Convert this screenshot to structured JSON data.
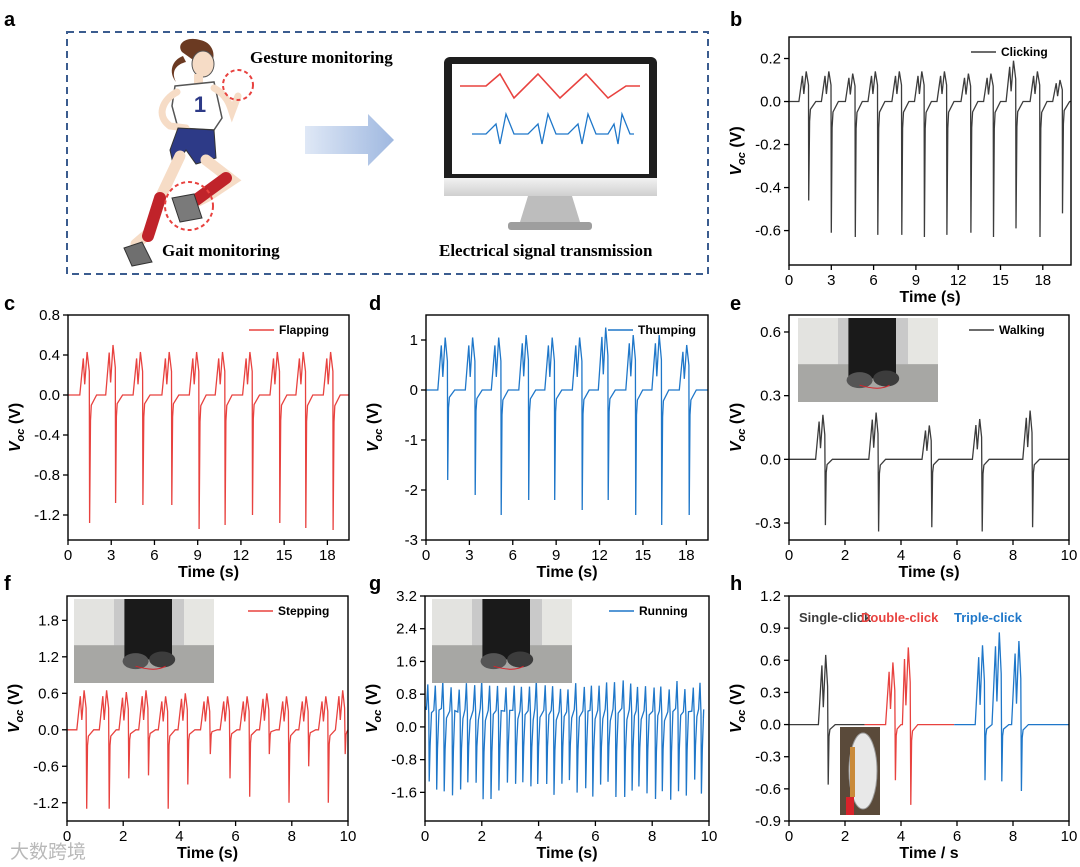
{
  "panel_a": {
    "letter": "a",
    "gesture_label": "Gesture monitoring",
    "gait_label": "Gait monitoring",
    "transmission_label": "Electrical signal transmission",
    "bib_number": "1"
  },
  "watermark": "大数跨境",
  "colors": {
    "black": "#3c3c3c",
    "red": "#e8423f",
    "blue": "#1f77c9",
    "frame": "#3b5c8f"
  },
  "chart_data": [
    {
      "id": "b",
      "type": "line",
      "letter": "b",
      "series_name": "Clicking",
      "color": "#3c3c3c",
      "xlabel": "Time (s)",
      "ylabel": "V_oc (V)",
      "xlim": [
        0,
        20
      ],
      "ylim": [
        -0.76,
        0.3
      ],
      "xticks": [
        0,
        3,
        6,
        9,
        12,
        15,
        18
      ],
      "yticks": [
        0.2,
        0.0,
        -0.2,
        -0.4,
        -0.6
      ],
      "xtick_labels": [
        "0",
        "3",
        "6",
        "9",
        "12",
        "15",
        "18"
      ],
      "ytick_labels": [
        "0.2",
        "0.0",
        "-0.2",
        "-0.4",
        "-0.6"
      ],
      "baseline": 0.0,
      "pulse_times": [
        1.4,
        3.0,
        4.7,
        6.3,
        8.0,
        9.6,
        11.2,
        12.9,
        14.5,
        16.1,
        17.8,
        19.4
      ],
      "peaks": [
        0.14,
        0.14,
        0.13,
        0.14,
        0.14,
        0.14,
        0.14,
        0.13,
        0.13,
        0.19,
        0.14,
        0.1
      ],
      "troughs": [
        -0.46,
        -0.61,
        -0.63,
        -0.62,
        -0.62,
        -0.63,
        -0.62,
        -0.61,
        -0.63,
        -0.59,
        -0.63,
        -0.52
      ]
    },
    {
      "id": "c",
      "type": "line",
      "letter": "c",
      "series_name": "Flapping",
      "color": "#e8423f",
      "xlabel": "Time (s)",
      "ylabel": "V_oc (V)",
      "xlim": [
        0,
        19.5
      ],
      "ylim": [
        -1.45,
        0.8
      ],
      "xticks": [
        0,
        3,
        6,
        9,
        12,
        15,
        18
      ],
      "yticks": [
        0.8,
        0.4,
        0.0,
        -0.4,
        -0.8,
        -1.2
      ],
      "xtick_labels": [
        "0",
        "3",
        "6",
        "9",
        "12",
        "15",
        "18"
      ],
      "ytick_labels": [
        "0.8",
        "0.4",
        "0.0",
        "-0.4",
        "-0.8",
        "-1.2"
      ],
      "baseline": 0.0,
      "pulse_times": [
        1.5,
        3.3,
        5.2,
        7.2,
        9.1,
        10.9,
        12.8,
        14.7,
        16.5,
        18.4
      ],
      "peaks": [
        0.43,
        0.5,
        0.43,
        0.43,
        0.43,
        0.43,
        0.43,
        0.43,
        0.43,
        0.43
      ],
      "troughs": [
        -1.28,
        -1.08,
        -1.1,
        -1.1,
        -1.34,
        -1.3,
        -1.2,
        -1.28,
        -1.33,
        -1.35
      ]
    },
    {
      "id": "d",
      "type": "line",
      "letter": "d",
      "series_name": "Thumping",
      "color": "#1f77c9",
      "xlabel": "Time (s)",
      "ylabel": "V_oc (V)",
      "xlim": [
        0,
        19.5
      ],
      "ylim": [
        -3,
        1.5
      ],
      "xticks": [
        0,
        3,
        6,
        9,
        12,
        15,
        18
      ],
      "yticks": [
        1,
        0,
        -1,
        -2,
        -3
      ],
      "xtick_labels": [
        "0",
        "3",
        "6",
        "9",
        "12",
        "15",
        "18"
      ],
      "ytick_labels": [
        "1",
        "0",
        "-1",
        "-2",
        "-3"
      ],
      "baseline": 0.0,
      "pulse_times": [
        1.5,
        3.4,
        5.2,
        7.1,
        8.9,
        10.8,
        12.6,
        14.5,
        16.3,
        18.2
      ],
      "peaks": [
        1.05,
        1.05,
        1.05,
        1.1,
        1.05,
        1.05,
        1.25,
        1.1,
        1.1,
        0.9
      ],
      "troughs": [
        -1.8,
        -2.1,
        -2.5,
        -2.2,
        -2.2,
        -2.4,
        -2.2,
        -2.5,
        -2.7,
        -2.5
      ]
    },
    {
      "id": "e",
      "type": "line",
      "letter": "e",
      "series_name": "Walking",
      "color": "#3c3c3c",
      "xlabel": "Time (s)",
      "ylabel": "V_oc (V)",
      "xlim": [
        0,
        10
      ],
      "ylim": [
        -0.38,
        0.68
      ],
      "xticks": [
        0,
        2,
        4,
        6,
        8,
        10
      ],
      "yticks": [
        0.6,
        0.3,
        0.0,
        -0.3
      ],
      "xtick_labels": [
        "0",
        "2",
        "4",
        "6",
        "8",
        "10"
      ],
      "ytick_labels": [
        "0.6",
        "0.3",
        "0.0",
        "-0.3"
      ],
      "baseline": 0.0,
      "pulse_times": [
        1.3,
        3.2,
        5.1,
        6.9,
        8.7
      ],
      "peaks": [
        0.21,
        0.22,
        0.16,
        0.19,
        0.23
      ],
      "troughs": [
        -0.31,
        -0.34,
        -0.32,
        -0.34,
        -0.32
      ],
      "inset": "photo of a person's feet walking with sensor attached to the shoe"
    },
    {
      "id": "f",
      "type": "line",
      "letter": "f",
      "series_name": "Stepping",
      "color": "#e8423f",
      "xlabel": "Time (s)",
      "ylabel": "V_oc (V)",
      "xlim": [
        0,
        10
      ],
      "ylim": [
        -1.5,
        2.2
      ],
      "xticks": [
        0,
        2,
        4,
        6,
        8,
        10
      ],
      "yticks": [
        1.8,
        1.2,
        0.6,
        0.0,
        -0.6,
        -1.2
      ],
      "xtick_labels": [
        "0",
        "2",
        "4",
        "6",
        "8",
        "10"
      ],
      "ytick_labels": [
        "1.8",
        "1.2",
        "0.6",
        "0.0",
        "-0.6",
        "-1.2"
      ],
      "baseline": 0.0,
      "pulse_times": [
        0.7,
        1.5,
        2.2,
        2.9,
        3.6,
        4.3,
        5.1,
        5.8,
        6.5,
        7.2,
        7.9,
        8.6,
        9.3,
        9.9
      ],
      "peaks": [
        0.65,
        0.65,
        0.62,
        0.65,
        0.55,
        0.6,
        0.55,
        0.55,
        0.55,
        0.6,
        0.55,
        0.55,
        0.55,
        0.65
      ],
      "troughs": [
        -1.3,
        -1.3,
        -0.8,
        -0.75,
        -1.3,
        -0.9,
        -0.4,
        -0.8,
        -1.1,
        -0.4,
        -1.2,
        -0.6,
        -1.2,
        -0.4
      ],
      "inset": "photo of a person's feet stepping with sensor attached to the shoe"
    },
    {
      "id": "g",
      "type": "line",
      "letter": "g",
      "series_name": "Running",
      "color": "#1f77c9",
      "xlabel": "Time (s)",
      "ylabel": "V_oc (V)",
      "xlim": [
        0,
        10
      ],
      "ylim": [
        -2.3,
        3.2
      ],
      "xticks": [
        0,
        2,
        4,
        6,
        8,
        10
      ],
      "yticks": [
        3.2,
        2.4,
        1.6,
        0.8,
        0.0,
        -0.8,
        -1.6
      ],
      "xtick_labels": [
        "0",
        "2",
        "4",
        "6",
        "8",
        "10"
      ],
      "ytick_labels": [
        "3.2",
        "2.4",
        "1.6",
        "0.8",
        "0.0",
        "-0.8",
        "-1.6"
      ],
      "baseline": 0.0,
      "pulse_count": 36,
      "peak_level": 1.05,
      "trough_level": -1.7,
      "inset": "photo of a person's feet running with sensor attached to the shoe"
    },
    {
      "id": "h",
      "type": "line",
      "letter": "h",
      "xlabel": "Time / s",
      "ylabel": "V_oc (V)",
      "xlim": [
        0,
        10
      ],
      "ylim": [
        -0.9,
        1.2
      ],
      "xticks": [
        0,
        2,
        4,
        6,
        8,
        10
      ],
      "yticks": [
        1.2,
        0.9,
        0.6,
        0.3,
        0.0,
        -0.3,
        -0.6,
        -0.9
      ],
      "xtick_labels": [
        "0",
        "2",
        "4",
        "6",
        "8",
        "10"
      ],
      "ytick_labels": [
        "1.2",
        "0.9",
        "0.6",
        "0.3",
        "0.0",
        "-0.3",
        "-0.6",
        "-0.9"
      ],
      "series": [
        {
          "name": "Single-click",
          "color": "#3c3c3c",
          "range": [
            0,
            2.7
          ],
          "pulse_times": [
            1.4
          ],
          "peaks": [
            0.65
          ],
          "troughs": [
            -0.56
          ]
        },
        {
          "name": "Double-click",
          "color": "#e8423f",
          "range": [
            2.7,
            5.9
          ],
          "pulse_times": [
            3.8,
            4.35
          ],
          "peaks": [
            0.58,
            0.72
          ],
          "troughs": [
            -0.52,
            -0.75
          ]
        },
        {
          "name": "Triple-click",
          "color": "#1f77c9",
          "range": [
            5.9,
            10
          ],
          "pulse_times": [
            7.0,
            7.6,
            8.3
          ],
          "peaks": [
            0.74,
            0.86,
            0.78
          ],
          "troughs": [
            -0.52,
            -0.53,
            -0.62
          ]
        }
      ],
      "inset": "photo of a computer mouse with an attached sensor"
    }
  ]
}
